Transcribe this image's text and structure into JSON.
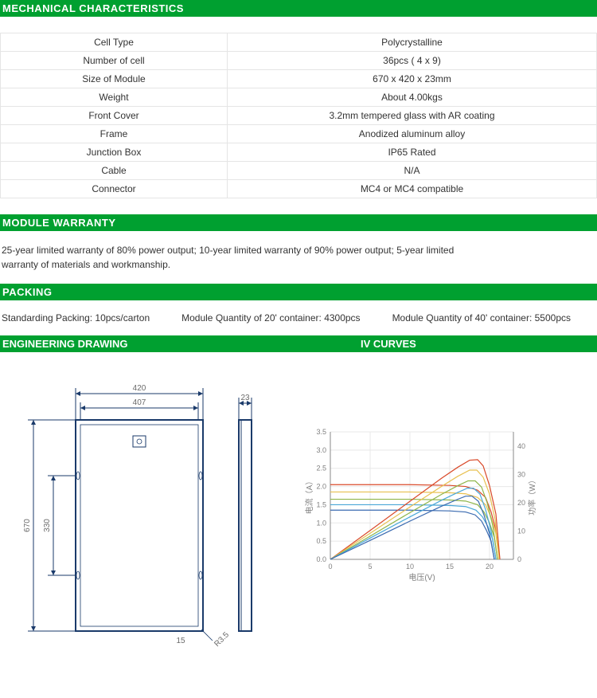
{
  "headers": {
    "mechanical": "MECHANICAL  CHARACTERISTICS",
    "warranty": "MODULE WARRANTY",
    "packing": "PACKING",
    "engineering": "ENGINEERING DRAWING",
    "iv": "IV CURVES"
  },
  "mech_rows": [
    {
      "label": "Cell Type",
      "value": "Polycrystalline"
    },
    {
      "label": "Number of cell",
      "value": "36pcs ( 4 x 9)"
    },
    {
      "label": "Size of Module",
      "value": "670 x 420 x 23mm"
    },
    {
      "label": "Weight",
      "value": "About 4.00kgs"
    },
    {
      "label": "Front Cover",
      "value": "3.2mm tempered glass with AR coating"
    },
    {
      "label": "Frame",
      "value": "Anodized aluminum alloy"
    },
    {
      "label": "Junction Box",
      "value": "IP65 Rated"
    },
    {
      "label": "Cable",
      "value": "N/A"
    },
    {
      "label": "Connector",
      "value": "MC4 or MC4 compatible"
    }
  ],
  "warranty_text": "25-year limited warranty of 80% power output; 10-year limited warranty of 90% power output; 5-year limited warranty of materials and workmanship.",
  "packing": {
    "std": "Standarding Packing: 10pcs/carton",
    "q20": "Module Quantity of 20' container: 4300pcs",
    "q40": "Module Quantity of 40' container: 5500pcs"
  },
  "drawing": {
    "outer_w_label": "420",
    "inner_w_label": "407",
    "thickness_label": "23",
    "outer_h_label": "670",
    "half_h_label": "330",
    "radius_label": "R3.5",
    "small_dim": "15",
    "stroke": "#1a3a6a",
    "text_color": "#6a6a6a",
    "fontsize": 10
  },
  "iv_chart": {
    "type": "line",
    "xlabel": "电压(V)",
    "ylabel_left": "电流（A）",
    "ylabel_right": "功率（W）",
    "x_ticks": [
      0,
      5,
      10,
      15,
      20
    ],
    "y_left_ticks": [
      0,
      0.5,
      1.0,
      1.5,
      2.0,
      2.5,
      3.0,
      3.5
    ],
    "y_right_ticks": [
      0,
      10,
      20,
      30,
      40
    ],
    "xlim": [
      0,
      23
    ],
    "ylim_left": [
      0,
      3.5
    ],
    "ylim_right": [
      0,
      45
    ],
    "grid_color": "#e8e8e8",
    "axis_color": "#888888",
    "text_color": "#808080",
    "tick_fontsize": 9,
    "label_fontsize": 10,
    "background": "#ffffff",
    "line_width": 1.2,
    "current_series": [
      {
        "color": "#d94a2a",
        "points": [
          [
            0,
            2.05
          ],
          [
            5,
            2.05
          ],
          [
            10,
            2.05
          ],
          [
            15,
            2.03
          ],
          [
            17,
            2.0
          ],
          [
            18.5,
            1.9
          ],
          [
            19.5,
            1.7
          ],
          [
            20.2,
            1.3
          ],
          [
            20.8,
            0.8
          ],
          [
            21.3,
            0.0
          ]
        ]
      },
      {
        "color": "#e8c050",
        "points": [
          [
            0,
            1.85
          ],
          [
            5,
            1.85
          ],
          [
            10,
            1.85
          ],
          [
            15,
            1.83
          ],
          [
            17,
            1.8
          ],
          [
            18.5,
            1.7
          ],
          [
            19.5,
            1.5
          ],
          [
            20.2,
            1.15
          ],
          [
            20.8,
            0.7
          ],
          [
            21.2,
            0.0
          ]
        ]
      },
      {
        "color": "#8fb54a",
        "points": [
          [
            0,
            1.65
          ],
          [
            5,
            1.65
          ],
          [
            10,
            1.65
          ],
          [
            15,
            1.63
          ],
          [
            17,
            1.6
          ],
          [
            18.5,
            1.5
          ],
          [
            19.3,
            1.3
          ],
          [
            20.0,
            1.0
          ],
          [
            20.6,
            0.6
          ],
          [
            21.0,
            0.0
          ]
        ]
      },
      {
        "color": "#4aa8d8",
        "points": [
          [
            0,
            1.5
          ],
          [
            5,
            1.5
          ],
          [
            10,
            1.5
          ],
          [
            15,
            1.48
          ],
          [
            17,
            1.45
          ],
          [
            18.3,
            1.35
          ],
          [
            19.1,
            1.17
          ],
          [
            19.8,
            0.9
          ],
          [
            20.4,
            0.55
          ],
          [
            20.8,
            0.0
          ]
        ]
      },
      {
        "color": "#3a6ab0",
        "points": [
          [
            0,
            1.35
          ],
          [
            5,
            1.35
          ],
          [
            10,
            1.35
          ],
          [
            15,
            1.33
          ],
          [
            17,
            1.3
          ],
          [
            18.2,
            1.22
          ],
          [
            19.0,
            1.05
          ],
          [
            19.6,
            0.8
          ],
          [
            20.2,
            0.5
          ],
          [
            20.6,
            0.0
          ]
        ]
      }
    ],
    "power_series": [
      {
        "color": "#d94a2a",
        "points": [
          [
            0,
            0
          ],
          [
            5,
            10.2
          ],
          [
            10,
            20.5
          ],
          [
            14,
            28.7
          ],
          [
            16,
            32.5
          ],
          [
            17.5,
            35.0
          ],
          [
            18.5,
            35.2
          ],
          [
            19.2,
            33.0
          ],
          [
            20.0,
            26.0
          ],
          [
            20.8,
            16.0
          ],
          [
            21.3,
            0.0
          ]
        ]
      },
      {
        "color": "#e8c050",
        "points": [
          [
            0,
            0
          ],
          [
            5,
            9.2
          ],
          [
            10,
            18.5
          ],
          [
            14,
            25.8
          ],
          [
            16,
            29.3
          ],
          [
            17.5,
            31.5
          ],
          [
            18.4,
            31.5
          ],
          [
            19.2,
            29.0
          ],
          [
            20.0,
            23.0
          ],
          [
            20.7,
            14.0
          ],
          [
            21.2,
            0.0
          ]
        ]
      },
      {
        "color": "#8fb54a",
        "points": [
          [
            0,
            0
          ],
          [
            5,
            8.2
          ],
          [
            10,
            16.5
          ],
          [
            14,
            23.0
          ],
          [
            16,
            26.0
          ],
          [
            17.3,
            27.7
          ],
          [
            18.2,
            27.7
          ],
          [
            19.0,
            25.5
          ],
          [
            19.7,
            20.0
          ],
          [
            20.4,
            12.0
          ],
          [
            21.0,
            0.0
          ]
        ]
      },
      {
        "color": "#4aa8d8",
        "points": [
          [
            0,
            0
          ],
          [
            5,
            7.5
          ],
          [
            10,
            15.0
          ],
          [
            14,
            20.9
          ],
          [
            16,
            23.6
          ],
          [
            17.2,
            25.1
          ],
          [
            18.0,
            25.1
          ],
          [
            18.8,
            23.0
          ],
          [
            19.5,
            17.6
          ],
          [
            20.2,
            10.0
          ],
          [
            20.8,
            0.0
          ]
        ]
      },
      {
        "color": "#3a6ab0",
        "points": [
          [
            0,
            0
          ],
          [
            5,
            6.7
          ],
          [
            10,
            13.5
          ],
          [
            14,
            18.8
          ],
          [
            16,
            21.2
          ],
          [
            17.0,
            22.3
          ],
          [
            17.8,
            22.3
          ],
          [
            18.6,
            20.5
          ],
          [
            19.3,
            15.7
          ],
          [
            20.0,
            9.0
          ],
          [
            20.6,
            0.0
          ]
        ]
      }
    ]
  }
}
